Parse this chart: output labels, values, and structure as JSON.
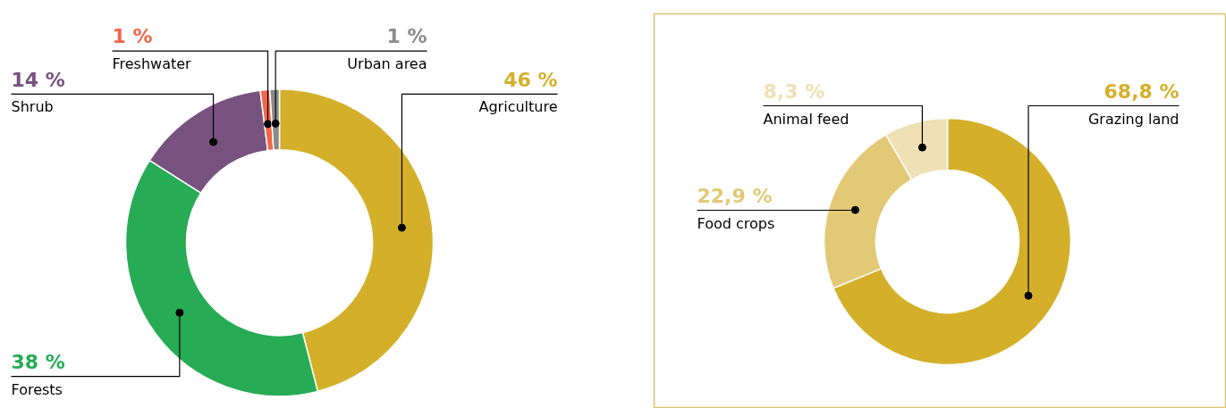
{
  "chart_data": [
    {
      "type": "donut",
      "categories": [
        "Agriculture",
        "Forests",
        "Shrub",
        "Freshwater",
        "Urban area"
      ],
      "values": [
        46,
        38,
        14,
        1,
        1
      ],
      "colors": [
        "#d4b02a",
        "#27ab55",
        "#77527f",
        "#f0674a",
        "#8a8a8a"
      ],
      "value_labels": [
        "46 %",
        "38 %",
        "14 %",
        "1 %",
        "1 %"
      ]
    },
    {
      "type": "donut",
      "categories": [
        "Grazing land",
        "Food crops",
        "Animal feed"
      ],
      "values": [
        68.8,
        22.9,
        8.3
      ],
      "colors": [
        "#d4b02a",
        "#e2c975",
        "#efe0b5"
      ],
      "value_labels": [
        "68,8 %",
        "22,9 %",
        "8,3 %"
      ]
    }
  ]
}
